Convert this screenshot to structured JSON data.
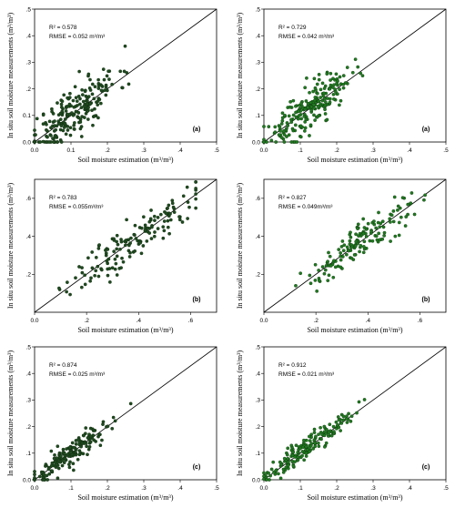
{
  "labels": {
    "y": "In situ soil moisture measurements (m³/m³)",
    "x": "Soil moisture estimation (m³/m³)"
  },
  "chart_data": [
    {
      "type": "scatter",
      "id": "a-left",
      "panel": "(a)",
      "color": "#1f4a1f",
      "r2": "R² = 0.578",
      "rmse": "RMSE = 0.052 m³/m³",
      "xlim": [
        0,
        0.5
      ],
      "ylim": [
        0,
        0.5
      ],
      "xticks": [
        "0.0",
        "0.1",
        ".2",
        ".3",
        ".4",
        ".5"
      ],
      "yticks": [
        "0.0",
        "0.1",
        ".2",
        ".3",
        ".4",
        ".5"
      ],
      "n": 220,
      "seed": 11,
      "slope": 1.05,
      "noise": 0.05,
      "xmin": 0.0,
      "xmax": 0.32,
      "xmean": 0.11,
      "xsd": 0.06,
      "xlabel": "Soil moisture estimation (m³/m³)",
      "ylabel": "In situ soil moisture measurements (m³/m³)"
    },
    {
      "type": "scatter",
      "id": "a-right",
      "panel": "(a)",
      "color": "#1f7a1f",
      "r2": "R² = 0.729",
      "rmse": "RMSE = 0.042 m³/m³",
      "xlim": [
        0,
        0.5
      ],
      "ylim": [
        0,
        0.5
      ],
      "xticks": [
        "0.0",
        ".1",
        ".2",
        ".3",
        ".4",
        ".5"
      ],
      "yticks": [
        "0.0",
        ".1",
        ".2",
        ".3",
        ".4",
        ".5"
      ],
      "n": 220,
      "seed": 23,
      "slope": 1.0,
      "noise": 0.04,
      "xmin": 0.0,
      "xmax": 0.32,
      "xmean": 0.12,
      "xsd": 0.06,
      "xlabel": "Soil moisture estimation (m³/m³)",
      "ylabel": "In situ soil moisture measurements (m³/m³)"
    },
    {
      "type": "scatter",
      "id": "b-left",
      "panel": "(b)",
      "color": "#1f4a1f",
      "r2": "R² = 0.783",
      "rmse": "RMSE = 0.055m³/m³",
      "xlim": [
        0,
        0.7
      ],
      "ylim": [
        0,
        0.7
      ],
      "xticks": [
        "0.0",
        ".2",
        ".4",
        ".6"
      ],
      "ytickvals": [
        0.2,
        0.4,
        0.6
      ],
      "yticks": [
        ".2",
        ".4",
        ".6"
      ],
      "xtickvals": [
        0,
        0.2,
        0.4,
        0.6
      ],
      "n": 150,
      "seed": 37,
      "slope": 1.0,
      "noise": 0.055,
      "xmin": 0.05,
      "xmax": 0.62,
      "xmean": 0.38,
      "xsd": 0.12,
      "xlabel": "Soil moisture estimation (m³/m³)",
      "ylabel": "In situ soil moisture measurements (m³/m³)"
    },
    {
      "type": "scatter",
      "id": "b-right",
      "panel": "(b)",
      "color": "#1f7a1f",
      "r2": "R² = 0.827",
      "rmse": "RMSE = 0.049m³/m³",
      "xlim": [
        0,
        0.7
      ],
      "ylim": [
        0,
        0.7
      ],
      "xticks": [
        "0.0",
        ".2",
        ".4",
        ".6"
      ],
      "ytickvals": [
        0.2,
        0.4,
        0.6
      ],
      "yticks": [
        ".2",
        ".4",
        ".6"
      ],
      "xtickvals": [
        0,
        0.2,
        0.4,
        0.6
      ],
      "n": 150,
      "seed": 41,
      "slope": 1.0,
      "noise": 0.045,
      "xmin": 0.08,
      "xmax": 0.62,
      "xmean": 0.38,
      "xsd": 0.11,
      "xlabel": "Soil moisture estimation (m³/m³)",
      "ylabel": "In situ soil moisture measurements (m³/m³)"
    },
    {
      "type": "scatter",
      "id": "c-left",
      "panel": "(c)",
      "color": "#1f4a1f",
      "r2": "R² = 0.874",
      "rmse": "RMSE = 0.025 m³/m³",
      "xlim": [
        0,
        0.5
      ],
      "ylim": [
        0,
        0.5
      ],
      "xticks": [
        "0.0",
        ".1",
        ".2",
        ".3",
        ".4",
        ".5"
      ],
      "yticks": [
        "0.0",
        ".1",
        ".2",
        ".3",
        ".4",
        ".5"
      ],
      "n": 170,
      "seed": 53,
      "slope": 1.0,
      "noise": 0.025,
      "xmin": 0.0,
      "xmax": 0.29,
      "xmean": 0.1,
      "xsd": 0.06,
      "xlabel": "Soil moisture estimation (m³/m³)",
      "ylabel": "In situ soil moisture measurements (m³/m³)"
    },
    {
      "type": "scatter",
      "id": "c-right",
      "panel": "(c)",
      "color": "#1f7a1f",
      "r2": "R² = 0.912",
      "rmse": "RMSE = 0.021 m³/m³",
      "xlim": [
        0,
        0.5
      ],
      "ylim": [
        0,
        0.5
      ],
      "xticks": [
        "0.0",
        ".1",
        ".2",
        ".3",
        ".4",
        ".5"
      ],
      "yticks": [
        "0.0",
        ".1",
        ".2",
        ".3",
        ".4",
        ".5"
      ],
      "n": 170,
      "seed": 67,
      "slope": 1.0,
      "noise": 0.02,
      "xmin": 0.0,
      "xmax": 0.3,
      "xmean": 0.11,
      "xsd": 0.06,
      "xlabel": "Soil moisture estimation (m³/m³)",
      "ylabel": "In situ soil moisture measurements (m³/m³)"
    }
  ]
}
